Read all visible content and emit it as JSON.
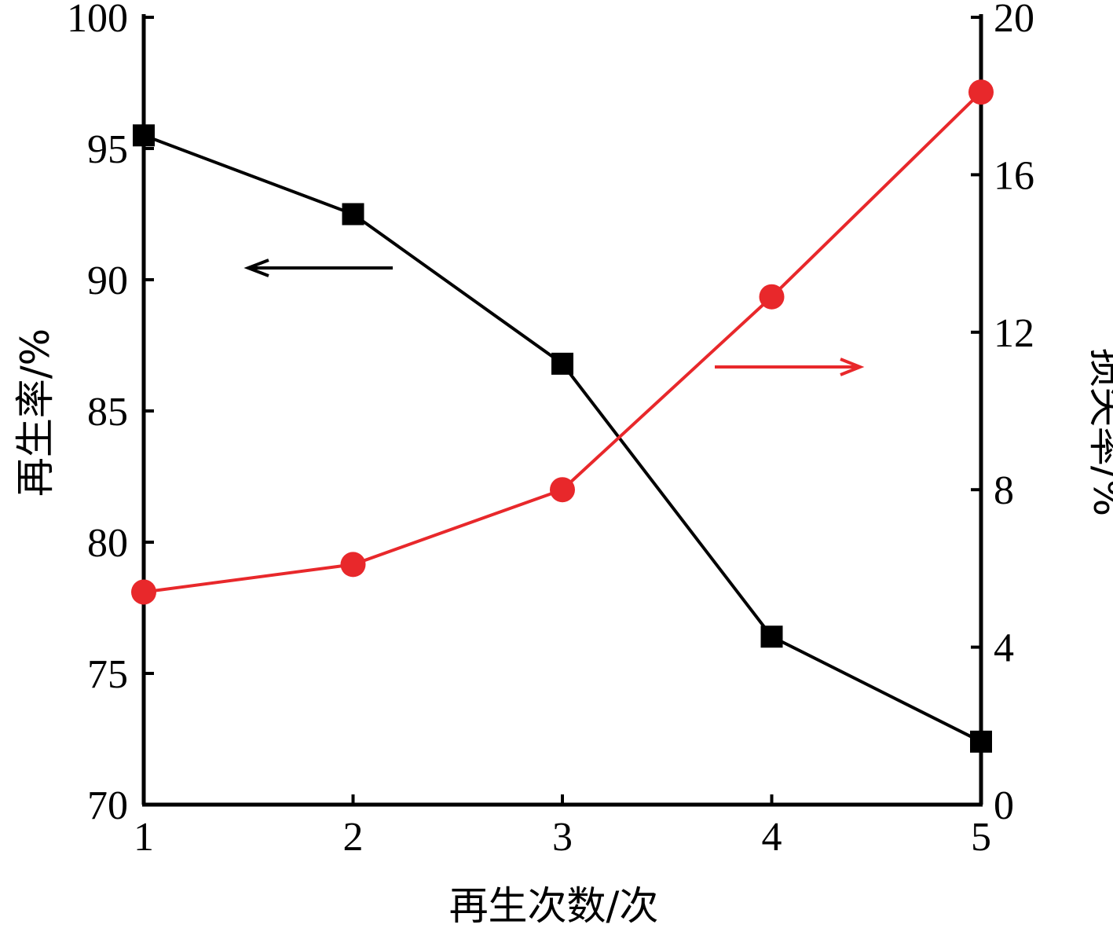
{
  "chart_data": {
    "type": "line",
    "xlabel": "再生次数/次",
    "ylabel": "再生率/%",
    "y2label": "损失率/%",
    "x": [
      1,
      2,
      3,
      4,
      5
    ],
    "xlim": [
      1,
      5
    ],
    "ylim": [
      70,
      100
    ],
    "y2lim": [
      0,
      20
    ],
    "xticks": [
      1,
      2,
      3,
      4,
      5
    ],
    "yticks": [
      70,
      75,
      80,
      85,
      90,
      95,
      100
    ],
    "y2ticks": [
      0,
      4,
      8,
      12,
      16,
      20
    ],
    "grid": false,
    "series": [
      {
        "axis": "left",
        "marker": "square",
        "color": "#000000",
        "values": [
          95.5,
          92.5,
          86.8,
          76.4,
          72.4
        ]
      },
      {
        "axis": "right",
        "marker": "circle",
        "color": "#e8282b",
        "values": [
          5.4,
          6.1,
          8.0,
          12.9,
          18.1
        ]
      }
    ],
    "annotations": [
      {
        "type": "arrow",
        "direction": "left",
        "points_to": "left",
        "color": "#000000"
      },
      {
        "type": "arrow",
        "direction": "right",
        "points_to": "right",
        "color": "#e8282b"
      }
    ]
  }
}
